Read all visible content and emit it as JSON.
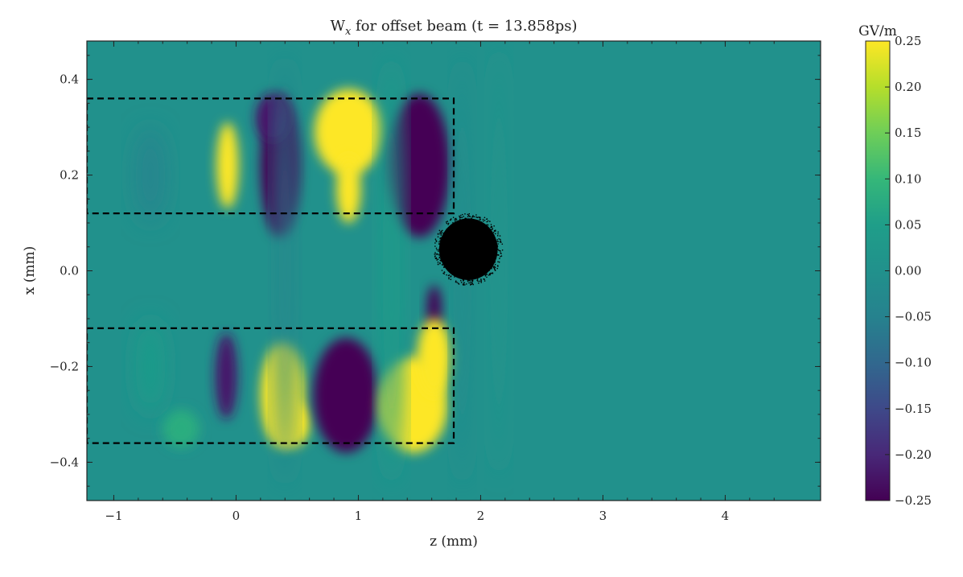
{
  "chart_data": {
    "type": "heatmap",
    "title_main": "W",
    "title_sub": "x",
    "title_rest": " for offset beam (t = 13.858ps)",
    "xlabel": "z (mm)",
    "ylabel": "x (mm)",
    "xlim": [
      -1.22,
      4.78
    ],
    "ylim": [
      -0.48,
      0.48
    ],
    "x_ticks": [
      -1,
      0,
      1,
      2,
      3,
      4
    ],
    "x_tick_labels": [
      "−1",
      "0",
      "1",
      "2",
      "3",
      "4"
    ],
    "y_ticks": [
      0.4,
      0.2,
      0.0,
      -0.2,
      -0.4
    ],
    "y_tick_labels": [
      "0.4",
      "0.2",
      "0.0",
      "−0.2",
      "−0.4"
    ],
    "colorbar": {
      "label": "GV/m",
      "colormap": "viridis",
      "range": [
        -0.25,
        0.25
      ],
      "ticks": [
        0.25,
        0.2,
        0.15,
        0.1,
        0.05,
        0.0,
        -0.05,
        -0.1,
        -0.15,
        -0.2,
        -0.25
      ],
      "tick_labels": [
        "0.25",
        "0.20",
        "0.15",
        "0.10",
        "0.05",
        "0.00",
        "−0.05",
        "−0.10",
        "−0.15",
        "−0.20",
        "−0.25"
      ]
    },
    "background_value": 0.0,
    "field_blobs": [
      {
        "z": -0.07,
        "x": 0.22,
        "rz": 0.09,
        "rx": 0.09,
        "v": 0.25
      },
      {
        "z": 0.36,
        "x": 0.22,
        "rz": 0.16,
        "rx": 0.15,
        "v": -0.25
      },
      {
        "z": 0.3,
        "x": 0.32,
        "rz": 0.14,
        "rx": 0.05,
        "v": -0.22
      },
      {
        "z": 0.92,
        "x": 0.29,
        "rz": 0.28,
        "rx": 0.09,
        "v": 0.25
      },
      {
        "z": 0.92,
        "x": 0.17,
        "rz": 0.1,
        "rx": 0.07,
        "v": 0.25
      },
      {
        "z": 1.5,
        "x": 0.22,
        "rz": 0.25,
        "rx": 0.15,
        "v": -0.25
      },
      {
        "z": 1.62,
        "x": -0.08,
        "rz": 0.06,
        "rx": 0.05,
        "v": -0.25
      },
      {
        "z": -0.08,
        "x": -0.22,
        "rz": 0.09,
        "rx": 0.09,
        "v": -0.22
      },
      {
        "z": 0.38,
        "x": -0.26,
        "rz": 0.18,
        "rx": 0.11,
        "v": 0.25
      },
      {
        "z": 0.45,
        "x": -0.32,
        "rz": 0.15,
        "rx": 0.05,
        "v": 0.25
      },
      {
        "z": 0.9,
        "x": -0.26,
        "rz": 0.27,
        "rx": 0.12,
        "v": -0.25
      },
      {
        "z": 1.45,
        "x": -0.28,
        "rz": 0.28,
        "rx": 0.1,
        "v": 0.25
      },
      {
        "z": 1.62,
        "x": -0.18,
        "rz": 0.14,
        "rx": 0.08,
        "v": 0.25
      },
      {
        "z": -0.45,
        "x": -0.33,
        "rz": 0.15,
        "rx": 0.04,
        "v": 0.08
      },
      {
        "z": 1.27,
        "x": 0.0,
        "rz": 0.08,
        "rx": 0.45,
        "v": 0.045
      },
      {
        "z": 0.4,
        "x": 0.0,
        "rz": 0.07,
        "rx": 0.45,
        "v": -0.035
      },
      {
        "z": -0.7,
        "x": 0.2,
        "rz": 0.12,
        "rx": 0.1,
        "v": -0.04
      },
      {
        "z": -0.7,
        "x": -0.2,
        "rz": 0.12,
        "rx": 0.1,
        "v": 0.04
      },
      {
        "z": 1.85,
        "x": 0.0,
        "rz": 0.06,
        "rx": 0.45,
        "v": -0.02
      },
      {
        "z": 2.15,
        "x": 0.02,
        "rz": 0.06,
        "rx": 0.45,
        "v": 0.015
      }
    ],
    "guide_boxes": [
      {
        "z0": -1.22,
        "z1": 1.78,
        "x0": 0.12,
        "x1": 0.36
      },
      {
        "z0": -1.22,
        "z1": 1.78,
        "x0": -0.36,
        "x1": -0.12
      }
    ],
    "beam": {
      "z": 1.9,
      "x": 0.045,
      "rz": 0.26,
      "rx": 0.07,
      "color": "#000000"
    }
  }
}
